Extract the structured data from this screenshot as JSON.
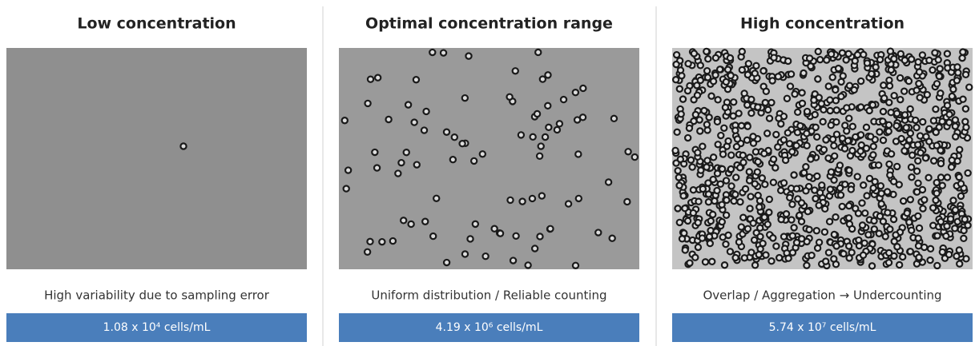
{
  "panels": [
    {
      "title": "Low concentration",
      "caption": "High variability due to sampling error",
      "concentration": "1.08 x 10⁴ cells/mL"
    },
    {
      "title": "Optimal concentration range",
      "caption": "Uniform distribution / Reliable counting",
      "concentration": "4.19 x 10⁶ cells/mL"
    },
    {
      "title": "High concentration",
      "caption": "Overlap / Aggregation → Undercounting",
      "concentration": "5.74 x 10⁷ cells/mL"
    }
  ]
}
